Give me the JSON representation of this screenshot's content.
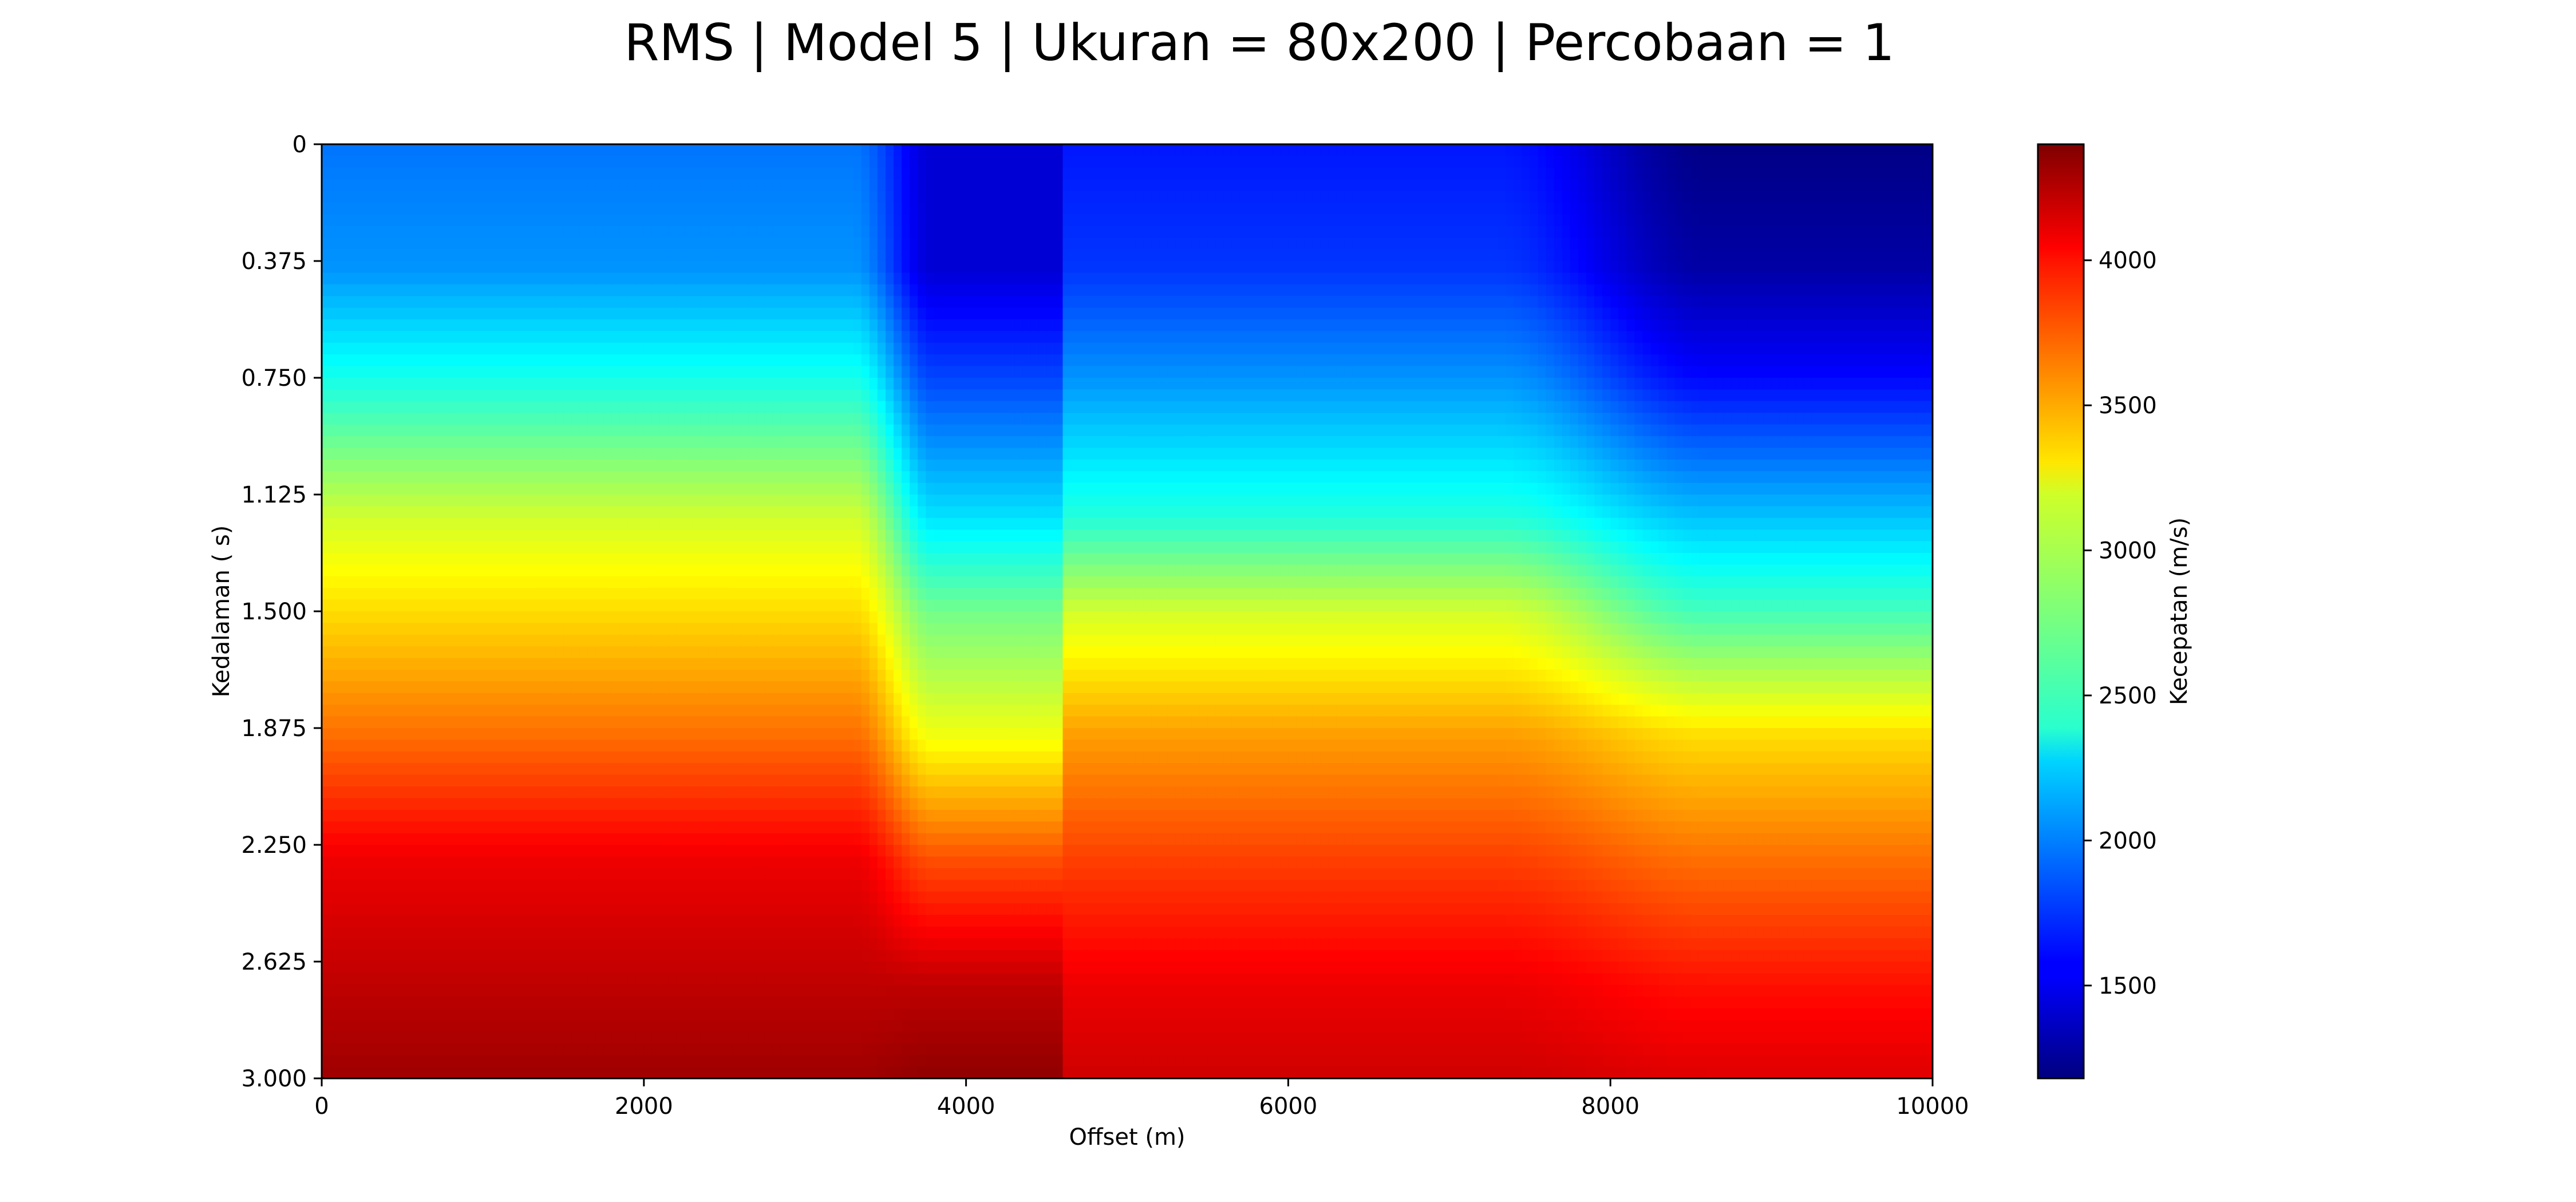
{
  "chart_data": {
    "type": "heatmap",
    "title": "RMS | Model 5 | Ukuran = 80x200 | Percobaan = 1",
    "xlabel": "Offset (m)",
    "ylabel": "Kedalaman ( s)",
    "colorbar_label": "Kecepatan (m/s)",
    "colormap": "jet",
    "xlim": [
      0,
      10000
    ],
    "ylim": [
      0,
      3.0
    ],
    "y_inverted": true,
    "clim": [
      1180,
      4400
    ],
    "x_ticks": [
      0,
      2000,
      4000,
      6000,
      8000,
      10000
    ],
    "x_tick_labels": [
      "0",
      "2000",
      "4000",
      "6000",
      "8000",
      "10000"
    ],
    "y_ticks": [
      0,
      0.375,
      0.75,
      1.125,
      1.5,
      1.875,
      2.25,
      2.625,
      3.0
    ],
    "y_tick_labels": [
      "0",
      "0.375",
      "0.750",
      "1.125",
      "1.500",
      "1.875",
      "2.250",
      "2.625",
      "3.000"
    ],
    "colorbar_ticks": [
      1500,
      2000,
      2500,
      3000,
      3500,
      4000
    ],
    "colorbar_tick_labels": [
      "1500",
      "2000",
      "2500",
      "3000",
      "3500",
      "4000"
    ],
    "grid_size": "80x200",
    "profiles": [
      {
        "x_range": [
          0,
          3300
        ],
        "depth": [
          0,
          0.4,
          0.75,
          1.2,
          1.5,
          1.9,
          2.3,
          2.7,
          3.0
        ],
        "velocity": [
          1950,
          2050,
          2450,
          3050,
          3300,
          3650,
          4050,
          4200,
          4300
        ]
      },
      {
        "x_range": [
          3800,
          4600
        ],
        "depth": [
          0,
          0.4,
          0.75,
          1.2,
          1.5,
          1.9,
          2.3,
          2.7,
          3.0
        ],
        "velocity": [
          1450,
          1450,
          1800,
          2300,
          2750,
          3150,
          3750,
          4200,
          4350
        ]
      },
      {
        "x_range": [
          4600,
          7300
        ],
        "depth": [
          0,
          0.4,
          0.75,
          1.2,
          1.5,
          1.9,
          2.3,
          2.7,
          3.0
        ],
        "velocity": [
          1650,
          1750,
          2050,
          2500,
          3050,
          3500,
          3800,
          4050,
          4150
        ]
      },
      {
        "x_range": [
          8600,
          10000
        ],
        "depth": [
          0,
          0.4,
          0.75,
          1.2,
          1.5,
          1.9,
          2.3,
          2.7,
          3.0
        ],
        "velocity": [
          1200,
          1300,
          1600,
          2200,
          2600,
          3300,
          3650,
          3950,
          4100
        ]
      }
    ]
  }
}
